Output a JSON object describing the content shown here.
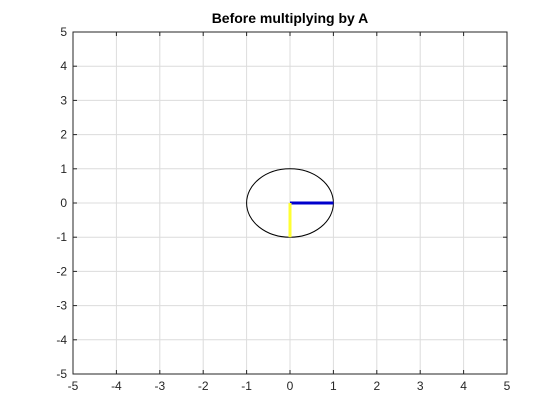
{
  "chart_data": {
    "type": "line",
    "title": "Before multiplying by A",
    "xlabel": "",
    "ylabel": "",
    "xlim": [
      -5,
      5
    ],
    "ylim": [
      -5,
      5
    ],
    "xticks": [
      -5,
      -4,
      -3,
      -2,
      -1,
      0,
      1,
      2,
      3,
      4,
      5
    ],
    "yticks": [
      -5,
      -4,
      -3,
      -2,
      -1,
      0,
      1,
      2,
      3,
      4,
      5
    ],
    "grid": true,
    "series": [
      {
        "kind": "circle",
        "center": [
          0,
          0
        ],
        "radius": 1,
        "color": "#000000"
      },
      {
        "kind": "segment",
        "x": [
          0,
          1
        ],
        "y": [
          0,
          0
        ],
        "color": "#0000cc"
      },
      {
        "kind": "segment",
        "x": [
          0,
          0
        ],
        "y": [
          0,
          -1
        ],
        "color": "#ffff33"
      }
    ]
  }
}
